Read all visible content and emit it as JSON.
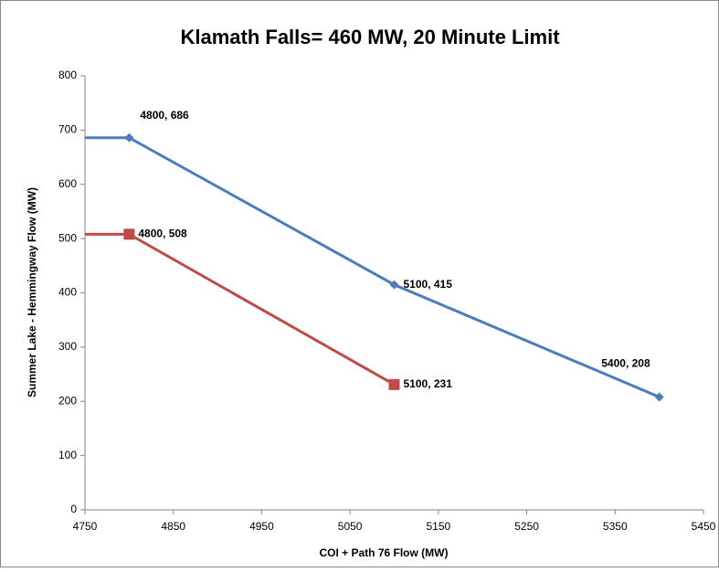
{
  "chart_data": {
    "type": "line",
    "title": "Klamath Falls= 460 MW, 20 Minute Limit",
    "x_label": "COI + Path 76 Flow (MW)",
    "y_label": "Summer Lake - Hemmingway Flow (MW)",
    "xlim": [
      4750,
      5450
    ],
    "xticks": [
      4750,
      4850,
      4950,
      5050,
      5150,
      5250,
      5350,
      5450
    ],
    "ylim": [
      0,
      800
    ],
    "yticks": [
      0,
      100,
      200,
      300,
      400,
      500,
      600,
      700,
      800
    ],
    "grid": false,
    "series": [
      {
        "color": "#4a7ebb",
        "marker": "diamond",
        "x": [
          4750,
          4800,
          5100,
          5400
        ],
        "values": [
          686,
          686,
          415,
          208
        ],
        "value_labels": [
          null,
          "4800, 686",
          "5100, 415",
          "5400, 208"
        ]
      },
      {
        "color": "#be4b48",
        "marker": "square",
        "x": [
          4750,
          4800,
          5100
        ],
        "values": [
          508,
          508,
          231
        ],
        "value_labels": [
          null,
          "4800, 508",
          "5100, 231"
        ]
      }
    ]
  }
}
